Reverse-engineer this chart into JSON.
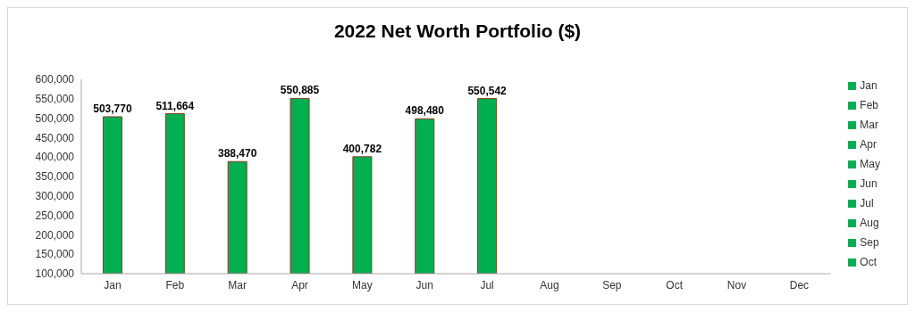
{
  "chart_data": {
    "type": "bar",
    "title": "2022 Net Worth Portfolio ($)",
    "categories": [
      "Jan",
      "Feb",
      "Mar",
      "Apr",
      "May",
      "Jun",
      "Jul",
      "Aug",
      "Sep",
      "Oct",
      "Nov",
      "Dec"
    ],
    "stacked": true,
    "series": [
      {
        "name": "Jan",
        "color": "#00b050",
        "values": [
          503770,
          null,
          null,
          null,
          null,
          null,
          null,
          null,
          null,
          null,
          null,
          null
        ],
        "value_labels": [
          "503,770",
          null,
          null,
          null,
          null,
          null,
          null,
          null,
          null,
          null,
          null,
          null
        ]
      },
      {
        "name": "Feb",
        "color": "#00b050",
        "values": [
          null,
          511664,
          null,
          null,
          null,
          null,
          null,
          null,
          null,
          null,
          null,
          null
        ],
        "value_labels": [
          null,
          "511,664",
          null,
          null,
          null,
          null,
          null,
          null,
          null,
          null,
          null,
          null
        ]
      },
      {
        "name": "Mar",
        "color": "#00b050",
        "values": [
          null,
          null,
          388470,
          null,
          null,
          null,
          null,
          null,
          null,
          null,
          null,
          null
        ],
        "value_labels": [
          null,
          null,
          "388,470",
          null,
          null,
          null,
          null,
          null,
          null,
          null,
          null,
          null
        ]
      },
      {
        "name": "Apr",
        "color": "#00b050",
        "values": [
          null,
          null,
          null,
          550885,
          null,
          null,
          null,
          null,
          null,
          null,
          null,
          null
        ],
        "value_labels": [
          null,
          null,
          null,
          "550,885",
          null,
          null,
          null,
          null,
          null,
          null,
          null,
          null
        ]
      },
      {
        "name": "May",
        "color": "#00b050",
        "values": [
          null,
          null,
          null,
          null,
          400782,
          null,
          null,
          null,
          null,
          null,
          null,
          null
        ],
        "value_labels": [
          null,
          null,
          null,
          null,
          "400,782",
          null,
          null,
          null,
          null,
          null,
          null,
          null
        ]
      },
      {
        "name": "Jun",
        "color": "#00b050",
        "values": [
          null,
          null,
          null,
          null,
          null,
          498480,
          null,
          null,
          null,
          null,
          null,
          null
        ],
        "value_labels": [
          null,
          null,
          null,
          null,
          null,
          "498,480",
          null,
          null,
          null,
          null,
          null,
          null
        ]
      },
      {
        "name": "Jul",
        "color": "#00b050",
        "values": [
          null,
          null,
          null,
          null,
          null,
          null,
          550542,
          null,
          null,
          null,
          null,
          null
        ],
        "value_labels": [
          null,
          null,
          null,
          null,
          null,
          null,
          "550,542",
          null,
          null,
          null,
          null,
          null
        ]
      },
      {
        "name": "Aug",
        "color": "#00b050",
        "values": [
          null,
          null,
          null,
          null,
          null,
          null,
          null,
          null,
          null,
          null,
          null,
          null
        ]
      },
      {
        "name": "Sep",
        "color": "#00b050",
        "values": [
          null,
          null,
          null,
          null,
          null,
          null,
          null,
          null,
          null,
          null,
          null,
          null
        ]
      },
      {
        "name": "Oct",
        "color": "#00b050",
        "values": [
          null,
          null,
          null,
          null,
          null,
          null,
          null,
          null,
          null,
          null,
          null,
          null
        ]
      }
    ],
    "ylim": [
      100000,
      600000
    ],
    "yticks": [
      {
        "value": 100000,
        "label": "100,000"
      },
      {
        "value": 150000,
        "label": "150,000"
      },
      {
        "value": 200000,
        "label": "200,000"
      },
      {
        "value": 250000,
        "label": "250,000"
      },
      {
        "value": 300000,
        "label": "300,000"
      },
      {
        "value": 350000,
        "label": "350,000"
      },
      {
        "value": 400000,
        "label": "400,000"
      },
      {
        "value": 450000,
        "label": "450,000"
      },
      {
        "value": 500000,
        "label": "500,000"
      },
      {
        "value": 550000,
        "label": "550,000"
      },
      {
        "value": 600000,
        "label": "600,000"
      }
    ],
    "legend": "right"
  }
}
